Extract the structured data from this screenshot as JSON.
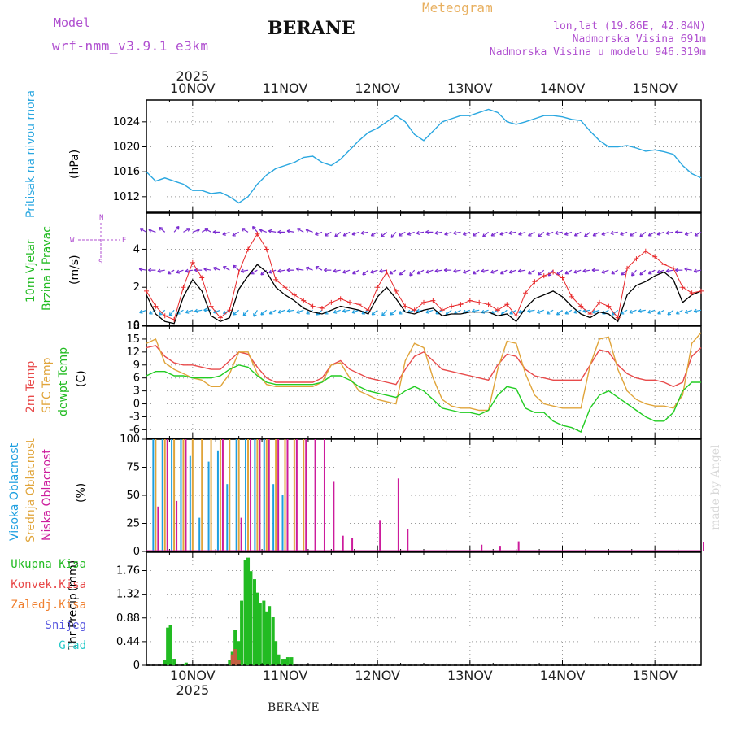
{
  "header": {
    "model_label": "Model",
    "model_name": "wrf-nmm_v3.9.1 e3km",
    "station": "BERANE",
    "product": "Meteogram",
    "lonlat": "lon,lat (19.86E, 42.84N)",
    "elevation": "Nadmorska Visina 691m",
    "model_elevation": "Nadmorska Visina u modelu 946.319m",
    "footer_station": "BERANE",
    "watermark": "made by Angel"
  },
  "colors": {
    "pressure": "#2aa7e0",
    "wind_speed": "#000000",
    "wind_gust": "#e8282a",
    "temp2m": "#e84a4a",
    "sfc_temp": "#e0a43a",
    "dewpt": "#22cc22",
    "high_cloud": "#1e9fe0",
    "mid_cloud": "#e0a43a",
    "low_cloud": "#cc1c9c",
    "total_precip": "#22bb22",
    "conv_precip": "#e84a4a",
    "frozen_precip": "#f08030",
    "snow": "#5a5ae0",
    "hail": "#22c8c8",
    "model_label": "#b050d0",
    "product_title": "#e8b060"
  },
  "time_axis": {
    "top_labels": [
      "10NOV",
      "11NOV",
      "12NOV",
      "13NOV",
      "14NOV",
      "15NOV"
    ],
    "top_year": "2025",
    "bottom_labels": [
      "10NOV",
      "11NOV",
      "12NOV",
      "13NOV",
      "14NOV",
      "15NOV"
    ],
    "bottom_year": "2025",
    "range_days": [
      -0.5,
      5.5
    ]
  },
  "chart_data": [
    {
      "type": "line",
      "id": "pressure",
      "ylabel": "Pritisak na nivou mora",
      "unit": "(hPa)",
      "ylim": [
        1009.5,
        1027.5
      ],
      "yticks": [
        1012,
        1016,
        1020,
        1024
      ],
      "grid": true,
      "x": [
        -0.5,
        -0.4,
        -0.3,
        -0.2,
        -0.1,
        0,
        0.1,
        0.2,
        0.3,
        0.4,
        0.5,
        0.6,
        0.7,
        0.8,
        0.9,
        1.0,
        1.1,
        1.2,
        1.3,
        1.4,
        1.5,
        1.6,
        1.7,
        1.8,
        1.9,
        2.0,
        2.1,
        2.2,
        2.3,
        2.4,
        2.5,
        2.6,
        2.7,
        2.8,
        2.9,
        3.0,
        3.1,
        3.2,
        3.3,
        3.4,
        3.5,
        3.6,
        3.7,
        3.8,
        3.9,
        4.0,
        4.1,
        4.2,
        4.3,
        4.4,
        4.5,
        4.6,
        4.7,
        4.8,
        4.9,
        5.0,
        5.1,
        5.2,
        5.3,
        5.4,
        5.5
      ],
      "values": [
        1016,
        1014.5,
        1015,
        1014.5,
        1014,
        1013,
        1013,
        1012.5,
        1012.7,
        1012,
        1011,
        1012,
        1014,
        1015.5,
        1016.5,
        1017,
        1017.5,
        1018.3,
        1018.5,
        1017.5,
        1017,
        1018,
        1019.5,
        1021,
        1022.3,
        1023,
        1024,
        1025,
        1024,
        1022,
        1021,
        1022.5,
        1024,
        1024.5,
        1025,
        1025,
        1025.5,
        1026,
        1025.5,
        1024,
        1023.6,
        1024,
        1024.5,
        1025,
        1025,
        1024.8,
        1024.4,
        1024.2,
        1022.5,
        1021,
        1020,
        1020,
        1020.2,
        1019.8,
        1019.3,
        1019.5,
        1019.2,
        1018.8,
        1017,
        1015.7,
        1015
      ]
    },
    {
      "type": "line",
      "id": "wind",
      "ylabel": "10m Vjetar",
      "ylabel2": "Brzina i Pravac",
      "unit": "(m/s)",
      "ylim": [
        0,
        5.9
      ],
      "yticks": [
        0,
        2,
        4
      ],
      "grid": true,
      "compass": [
        "N",
        "W",
        "E",
        "S"
      ],
      "x": [
        -0.5,
        -0.4,
        -0.3,
        -0.2,
        -0.1,
        0,
        0.1,
        0.2,
        0.3,
        0.4,
        0.5,
        0.6,
        0.7,
        0.8,
        0.9,
        1.0,
        1.1,
        1.2,
        1.3,
        1.4,
        1.5,
        1.6,
        1.7,
        1.8,
        1.9,
        2.0,
        2.1,
        2.2,
        2.3,
        2.4,
        2.5,
        2.6,
        2.7,
        2.8,
        2.9,
        3.0,
        3.1,
        3.2,
        3.3,
        3.4,
        3.5,
        3.6,
        3.7,
        3.8,
        3.9,
        4.0,
        4.1,
        4.2,
        4.3,
        4.4,
        4.5,
        4.6,
        4.7,
        4.8,
        4.9,
        5.0,
        5.1,
        5.2,
        5.3,
        5.4,
        5.5
      ],
      "series": [
        {
          "name": "speed",
          "values": [
            1.6,
            0.6,
            0.2,
            0.1,
            1.5,
            2.4,
            1.8,
            0.5,
            0.2,
            0.4,
            1.9,
            2.6,
            3.2,
            2.8,
            2.0,
            1.6,
            1.3,
            0.9,
            0.7,
            0.6,
            0.8,
            1.0,
            0.9,
            0.8,
            0.6,
            1.5,
            2.0,
            1.4,
            0.7,
            0.6,
            0.8,
            0.9,
            0.5,
            0.6,
            0.6,
            0.7,
            0.7,
            0.7,
            0.5,
            0.6,
            0.2,
            0.9,
            1.4,
            1.6,
            1.8,
            1.5,
            1.0,
            0.6,
            0.4,
            0.7,
            0.6,
            0.2,
            1.6,
            2.1,
            2.3,
            2.6,
            2.8,
            2.4,
            1.2,
            1.6,
            1.8
          ]
        },
        {
          "name": "gust",
          "values": [
            1.8,
            1.0,
            0.5,
            0.3,
            2.0,
            3.3,
            2.5,
            1.0,
            0.4,
            0.8,
            2.8,
            4.0,
            4.8,
            4.0,
            2.4,
            2.0,
            1.6,
            1.3,
            1.0,
            0.9,
            1.2,
            1.4,
            1.2,
            1.1,
            0.8,
            2.0,
            2.8,
            1.8,
            1.0,
            0.8,
            1.2,
            1.3,
            0.8,
            1.0,
            1.1,
            1.3,
            1.2,
            1.1,
            0.8,
            1.1,
            0.5,
            1.7,
            2.3,
            2.6,
            2.8,
            2.5,
            1.5,
            1.0,
            0.6,
            1.2,
            1.0,
            0.4,
            3.0,
            3.5,
            3.9,
            3.6,
            3.2,
            3.0,
            2.0,
            1.7,
            1.8
          ]
        }
      ],
      "direction_rows": [
        {
          "level": 4.9,
          "color": "#7a2ad0",
          "dirs": [
            300,
            290,
            310,
            40,
            60,
            70,
            60,
            300,
            270,
            250,
            240,
            300,
            320,
            290,
            280,
            270,
            280,
            300,
            290,
            250,
            240,
            230,
            240,
            250,
            260,
            240,
            230,
            220,
            240,
            250,
            260,
            270,
            260,
            250,
            260,
            250,
            240,
            230,
            240,
            250,
            260,
            250,
            240,
            230,
            250,
            260,
            250,
            240,
            230,
            240,
            250,
            260,
            250,
            240,
            230,
            240,
            250,
            260,
            270,
            250,
            240
          ]
        },
        {
          "level": 2.9,
          "color": "#7a2ad0",
          "dirs": [
            280,
            270,
            260,
            240,
            250,
            260,
            270,
            280,
            290,
            300,
            310,
            260,
            240,
            230,
            250,
            260,
            270,
            280,
            290,
            300,
            270,
            260,
            250,
            240,
            230,
            250,
            260,
            240,
            230,
            220,
            240,
            250,
            260,
            270,
            260,
            250,
            240,
            260,
            250,
            240,
            250,
            260,
            240,
            230,
            220,
            230,
            240,
            250,
            260,
            270,
            250,
            240,
            230,
            220,
            230,
            240,
            250,
            260,
            270,
            280,
            260
          ]
        },
        {
          "level": 0.8,
          "color": "#1e9fe0",
          "dirs": [
            250,
            240,
            230,
            220,
            240,
            250,
            260,
            270,
            250,
            240,
            230,
            220,
            210,
            230,
            240,
            250,
            260,
            250,
            240,
            230,
            240,
            250,
            260,
            250,
            240,
            230,
            220,
            230,
            240,
            250,
            260,
            250,
            240,
            230,
            240,
            250,
            260,
            250,
            240,
            230,
            240,
            250,
            260,
            250,
            240,
            230,
            240,
            250,
            260,
            250,
            240,
            230,
            240,
            250,
            260,
            250,
            240,
            230,
            240,
            250,
            260
          ]
        }
      ]
    },
    {
      "type": "line",
      "id": "temperature",
      "ylabel": "2m Temp",
      "ylabel2": "SFC Temp",
      "ylabel3": "dewpt Temp",
      "unit": "(C)",
      "ylim": [
        -8,
        18
      ],
      "yticks": [
        18,
        15,
        12,
        9,
        6,
        3,
        0,
        -3,
        -6
      ],
      "grid": true,
      "x": [
        -0.5,
        -0.4,
        -0.3,
        -0.2,
        -0.1,
        0,
        0.1,
        0.2,
        0.3,
        0.4,
        0.5,
        0.6,
        0.7,
        0.8,
        0.9,
        1.0,
        1.1,
        1.2,
        1.3,
        1.4,
        1.5,
        1.6,
        1.7,
        1.8,
        1.9,
        2.0,
        2.1,
        2.2,
        2.3,
        2.4,
        2.5,
        2.6,
        2.7,
        2.8,
        2.9,
        3.0,
        3.1,
        3.2,
        3.3,
        3.4,
        3.5,
        3.6,
        3.7,
        3.8,
        3.9,
        4.0,
        4.1,
        4.2,
        4.3,
        4.4,
        4.5,
        4.6,
        4.7,
        4.8,
        4.9,
        5.0,
        5.1,
        5.2,
        5.3,
        5.4,
        5.5
      ],
      "series": [
        {
          "name": "2m Temp",
          "values": [
            13,
            13.5,
            11,
            9.5,
            9,
            9,
            8.5,
            8,
            8,
            10,
            12,
            11.5,
            8.5,
            6,
            5,
            5,
            5,
            5,
            5,
            6,
            9,
            10,
            8,
            7,
            6,
            5.5,
            5,
            4.5,
            8,
            11,
            12,
            10,
            8,
            7.5,
            7,
            6.5,
            6,
            5.5,
            9,
            11.5,
            11,
            8,
            6.5,
            6,
            5.5,
            5.5,
            5.5,
            5.5,
            9,
            12.5,
            12,
            9,
            7,
            6,
            5.5,
            5.5,
            5,
            4,
            5,
            11,
            13
          ]
        },
        {
          "name": "SFC Temp",
          "values": [
            14,
            15,
            9.5,
            8,
            7,
            6,
            5.5,
            4,
            4,
            7,
            12,
            12,
            7,
            4.5,
            4,
            4,
            4,
            4,
            4,
            5,
            9,
            9.5,
            6,
            3,
            2,
            1,
            0.5,
            0,
            10,
            14,
            13,
            6,
            1,
            -0.5,
            -1,
            -1,
            -1.5,
            -1.5,
            8,
            14.5,
            14,
            7,
            2,
            0,
            -0.5,
            -1,
            -1,
            -1,
            9,
            15,
            15.5,
            8,
            3,
            1,
            0,
            -0.5,
            -0.5,
            -1,
            2,
            14,
            16.5
          ]
        },
        {
          "name": "dewpt Temp",
          "values": [
            6.5,
            7.5,
            7.5,
            6.5,
            6.5,
            6,
            6,
            6,
            6.5,
            8,
            9,
            8.5,
            6.5,
            5,
            4.5,
            4.5,
            4.5,
            4.5,
            4.5,
            5,
            6.5,
            6.5,
            5.5,
            4,
            3,
            2.5,
            2,
            1.5,
            3,
            4,
            3,
            1,
            -1,
            -1.5,
            -2,
            -2,
            -2.5,
            -1.5,
            2,
            4,
            3.5,
            -1,
            -2,
            -2,
            -4,
            -5,
            -5.5,
            -6.5,
            -1,
            2,
            3,
            1.5,
            0,
            -1.5,
            -3,
            -4,
            -4,
            -2,
            3,
            5,
            5
          ]
        }
      ]
    },
    {
      "type": "bar",
      "id": "cloud",
      "ylabel": "Visoka Oblacnost",
      "ylabel2": "Srednja Oblacnost",
      "ylabel3": "Niska Oblacnost",
      "unit": "(%)",
      "ylim": [
        0,
        100
      ],
      "yticks": [
        0,
        25,
        50,
        75,
        100
      ],
      "grid": true,
      "x": [
        -0.4,
        -0.3,
        -0.2,
        -0.1,
        0,
        0.1,
        0.2,
        0.3,
        0.4,
        0.5,
        0.6,
        0.7,
        0.8,
        0.9,
        1.0,
        1.1,
        1.2,
        1.3,
        1.4,
        1.5,
        1.6,
        1.7,
        1.8,
        1.9,
        2.0,
        2.1,
        2.2,
        2.3,
        2.4,
        3.1,
        3.3,
        3.5,
        5.5
      ],
      "series": [
        {
          "name": "Visoka",
          "values": [
            100,
            100,
            100,
            100,
            85,
            30,
            80,
            90,
            60,
            100,
            100,
            100,
            100,
            60,
            50,
            0,
            0,
            0,
            0,
            0,
            0,
            0,
            0,
            0,
            0,
            0,
            0,
            0,
            0,
            0,
            0,
            0,
            0
          ]
        },
        {
          "name": "Srednja",
          "values": [
            100,
            100,
            100,
            100,
            100,
            100,
            100,
            100,
            100,
            100,
            100,
            100,
            100,
            100,
            100,
            100,
            100,
            0,
            0,
            0,
            0,
            0,
            0,
            0,
            0,
            0,
            0,
            0,
            0,
            0,
            0,
            0,
            0
          ]
        },
        {
          "name": "Niska",
          "values": [
            40,
            100,
            45,
            100,
            0,
            0,
            0,
            100,
            0,
            30,
            100,
            100,
            100,
            100,
            100,
            100,
            100,
            100,
            100,
            62,
            14,
            12,
            0,
            0,
            28,
            0,
            65,
            20,
            0,
            6,
            5,
            9,
            8
          ]
        }
      ]
    },
    {
      "type": "bar",
      "id": "precip",
      "ylabel": "1hr Precip",
      "unit": "(mm)",
      "ylim": [
        0,
        2.1
      ],
      "yticks": [
        0,
        0.44,
        0.88,
        1.32,
        1.76
      ],
      "grid": true,
      "legend": [
        "Ukupna Kisa",
        "Konvek.Kisa",
        "Zaledj.Kisa",
        "Snijeg",
        "Grad"
      ],
      "x": [
        -0.3,
        -0.27,
        -0.24,
        -0.2,
        -0.1,
        -0.07,
        0.4,
        0.43,
        0.46,
        0.5,
        0.53,
        0.57,
        0.6,
        0.63,
        0.67,
        0.7,
        0.73,
        0.77,
        0.8,
        0.83,
        0.87,
        0.9,
        0.93,
        0.97,
        1.0,
        1.03,
        1.07,
        1.1
      ],
      "series": [
        {
          "name": "Ukupna Kisa",
          "values": [
            0.1,
            0.7,
            0.75,
            0.12,
            0.02,
            0.05,
            0.1,
            0.25,
            0.65,
            0.45,
            1.2,
            1.95,
            2.0,
            1.75,
            1.6,
            1.35,
            1.15,
            1.2,
            1.0,
            1.1,
            0.9,
            0.45,
            0.2,
            0.12,
            0.12,
            0.15,
            0.15,
            0.0
          ]
        },
        {
          "name": "Konvek.Kisa",
          "values": [
            0,
            0,
            0,
            0,
            0,
            0,
            0,
            0.2,
            0.3,
            0.1,
            0,
            0,
            0,
            0,
            0,
            0,
            0,
            0,
            0,
            0,
            0,
            0,
            0,
            0,
            0,
            0,
            0,
            0
          ]
        }
      ]
    }
  ]
}
